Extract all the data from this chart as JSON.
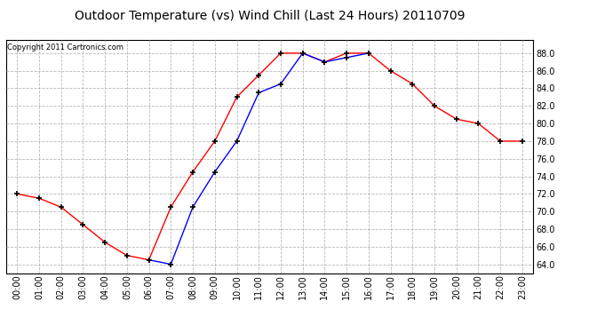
{
  "title": "Outdoor Temperature (vs) Wind Chill (Last 24 Hours) 20110709",
  "copyright_text": "Copyright 2011 Cartronics.com",
  "x_labels": [
    "00:00",
    "01:00",
    "02:00",
    "03:00",
    "04:00",
    "05:00",
    "06:00",
    "07:00",
    "08:00",
    "09:00",
    "10:00",
    "11:00",
    "12:00",
    "13:00",
    "14:00",
    "15:00",
    "16:00",
    "17:00",
    "18:00",
    "19:00",
    "20:00",
    "21:00",
    "22:00",
    "23:00"
  ],
  "red_temp": [
    72.0,
    71.5,
    70.5,
    68.5,
    66.5,
    65.0,
    64.5,
    70.5,
    74.5,
    78.0,
    83.0,
    85.5,
    88.0,
    88.0,
    87.0,
    88.0,
    88.0,
    86.0,
    84.5,
    82.0,
    80.5,
    80.0,
    78.0,
    78.0
  ],
  "blue_wc": [
    null,
    null,
    null,
    null,
    null,
    null,
    64.5,
    64.0,
    70.5,
    74.5,
    78.0,
    83.5,
    84.5,
    88.0,
    87.0,
    87.5,
    88.0,
    null,
    null,
    null,
    null,
    null,
    null,
    null
  ],
  "ylim": [
    63.0,
    89.5
  ],
  "yticks": [
    64.0,
    66.0,
    68.0,
    70.0,
    72.0,
    74.0,
    76.0,
    78.0,
    80.0,
    82.0,
    84.0,
    86.0,
    88.0
  ],
  "red_color": "#ff0000",
  "blue_color": "#0000ff",
  "bg_color": "#ffffff",
  "grid_color": "#b0b0b0",
  "title_fontsize": 10,
  "copyright_fontsize": 6,
  "tick_fontsize": 7
}
